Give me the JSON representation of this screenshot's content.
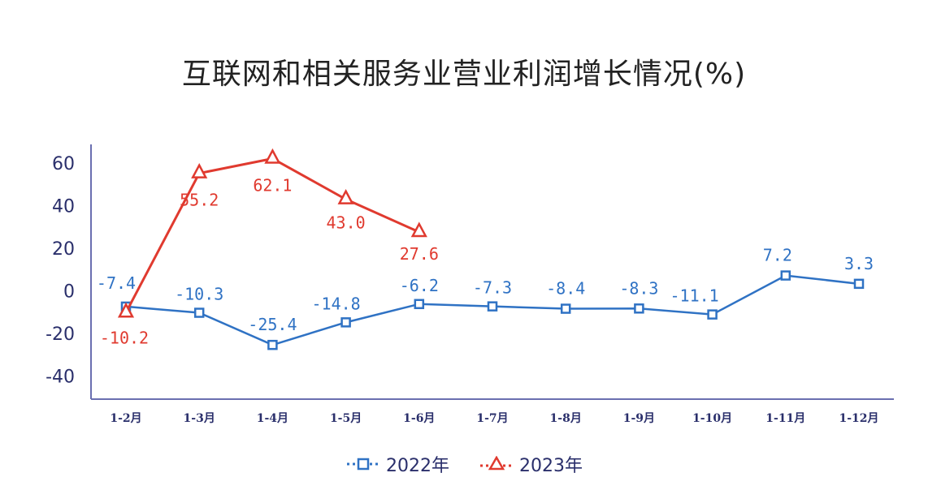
{
  "chart_data": {
    "type": "line",
    "title": "互联网和相关服务业营业利润增长情况(%)",
    "categories": [
      "1-2月",
      "1-3月",
      "1-4月",
      "1-5月",
      "1-6月",
      "1-7月",
      "1-8月",
      "1-9月",
      "1-10月",
      "1-11月",
      "1-12月"
    ],
    "series": [
      {
        "name": "2022年",
        "color": "#2f72c4",
        "marker": "square",
        "values": [
          -7.4,
          -10.3,
          -25.4,
          -14.8,
          -6.2,
          -7.3,
          -8.4,
          -8.3,
          -11.1,
          7.2,
          3.3
        ],
        "labels": [
          "-7.4",
          "-10.3",
          "-25.4",
          "-14.8",
          "-6.2",
          "-7.3",
          "-8.4",
          "-8.3",
          "-11.1",
          "7.2",
          "3.3"
        ]
      },
      {
        "name": "2023年",
        "color": "#e03a2f",
        "marker": "triangle",
        "values": [
          -10.2,
          55.2,
          62.1,
          43.0,
          27.6,
          null,
          null,
          null,
          null,
          null,
          null
        ],
        "labels": [
          "-10.2",
          "55.2",
          "62.1",
          "43.0",
          "27.6",
          null,
          null,
          null,
          null,
          null,
          null
        ]
      }
    ],
    "yticks": [
      60,
      40,
      20,
      0,
      -20,
      -40
    ],
    "ylim": [
      -50,
      70
    ],
    "grid": false,
    "legend_position": "bottom"
  }
}
